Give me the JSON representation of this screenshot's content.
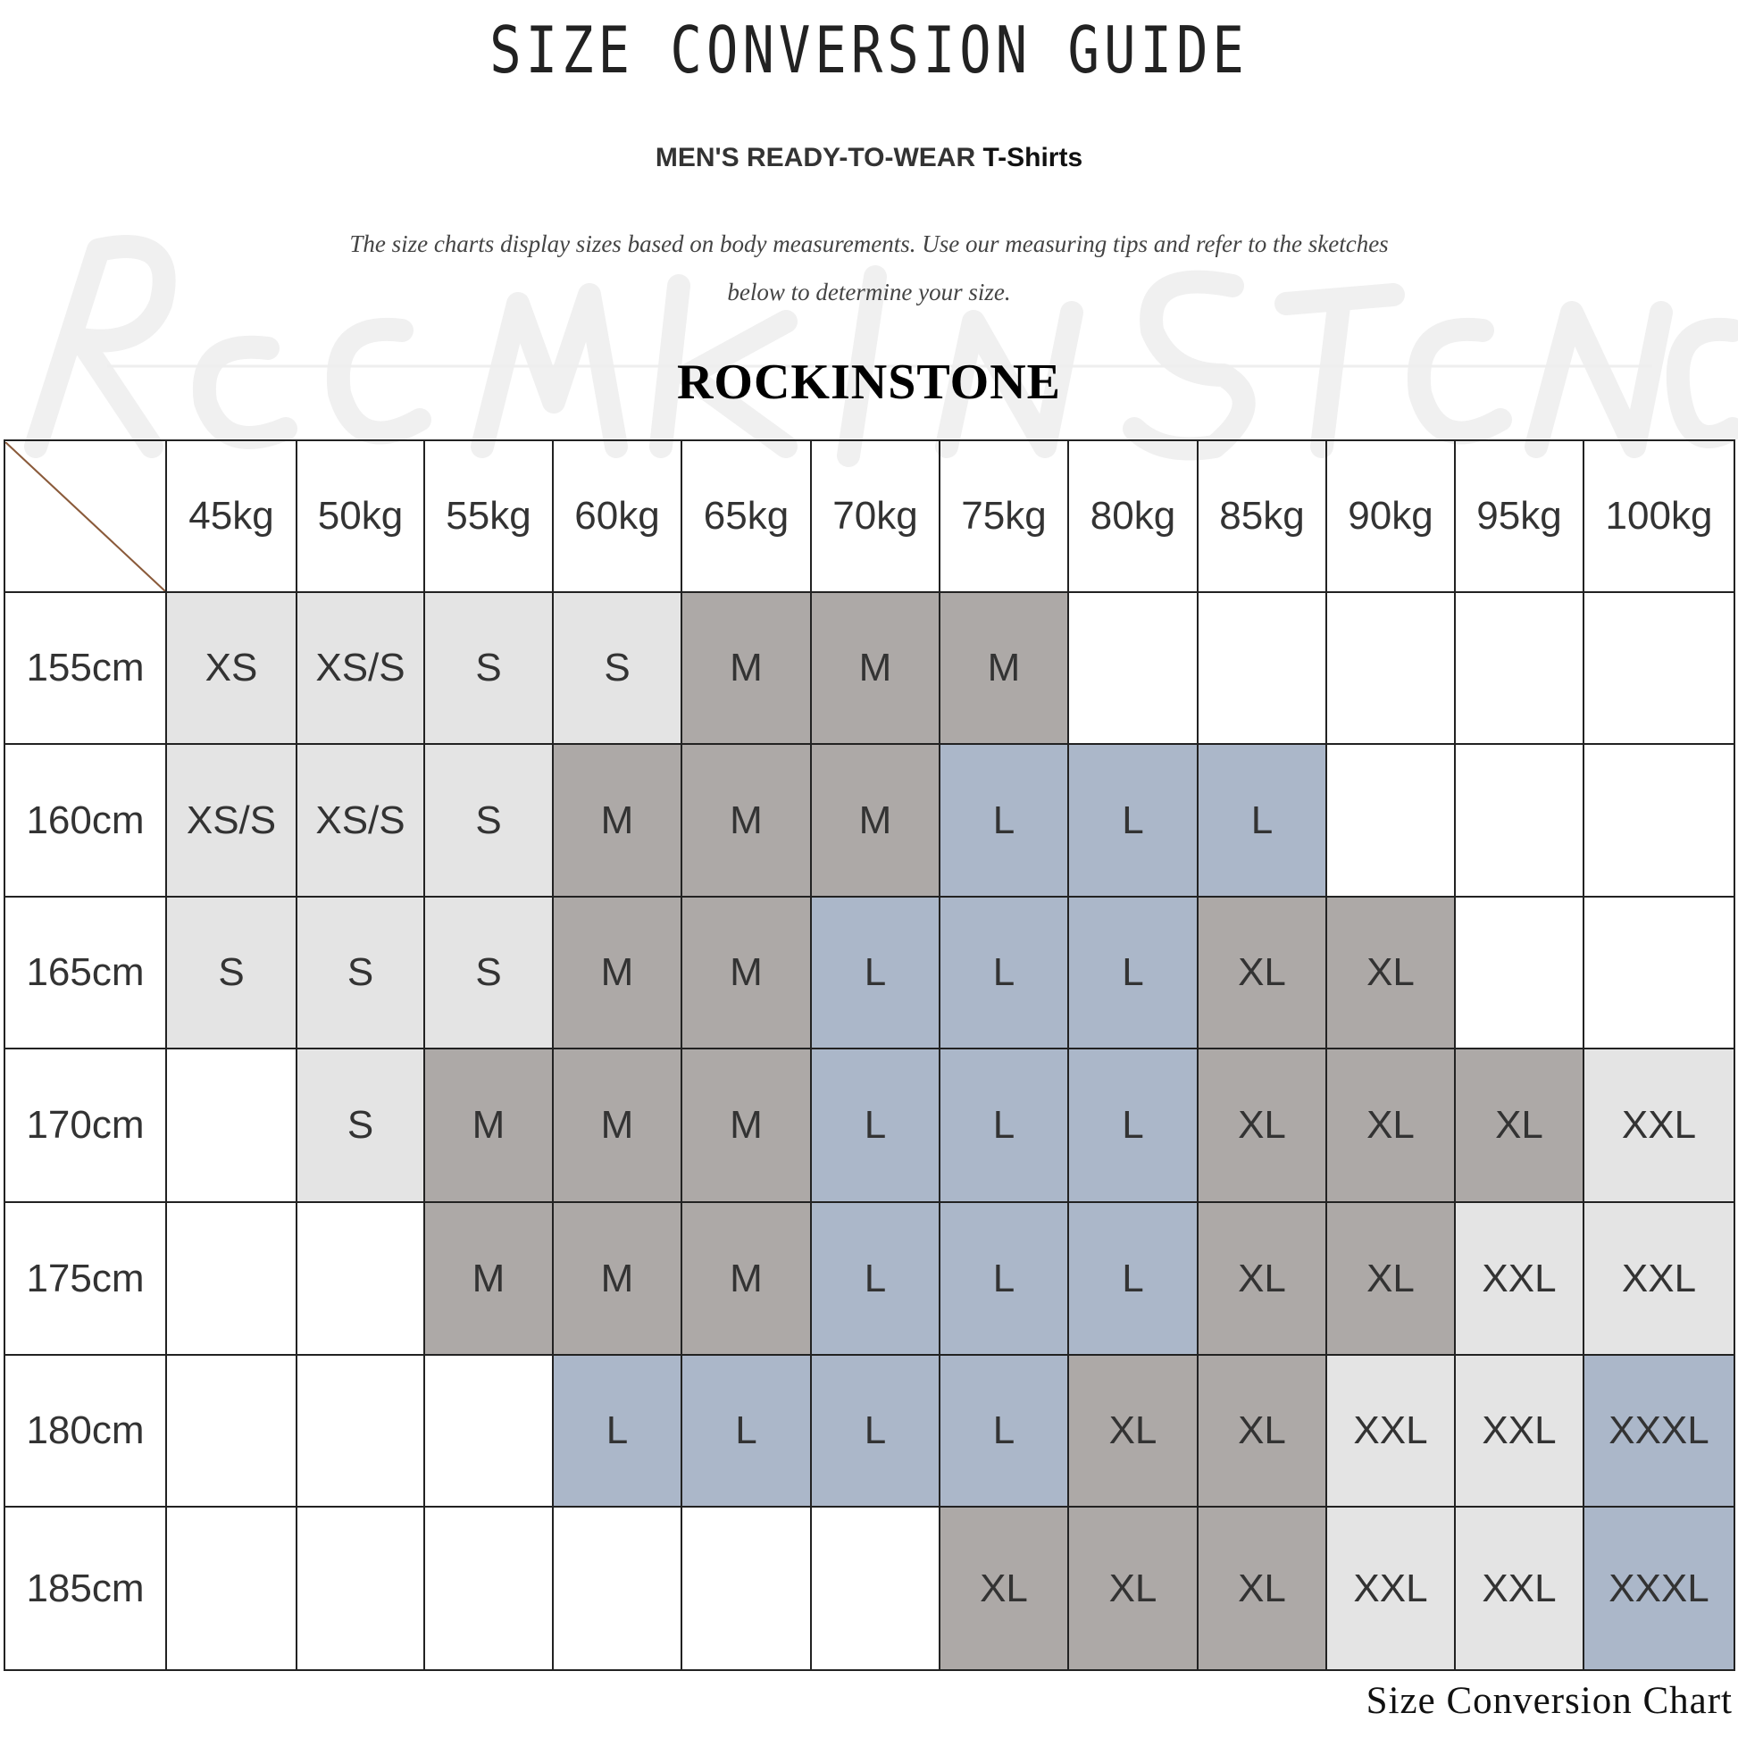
{
  "title": "SIZE CONVERSION GUIDE",
  "subtitle": {
    "main": "MEN'S READY-TO-WEAR ",
    "product": "T-Shirts"
  },
  "description": [
    "The size charts display sizes based on body measurements. Use our measuring tips and refer to the sketches",
    "below to determine your size."
  ],
  "brand": "ROCKINSTONE",
  "watermark": "Rockinstone",
  "footer": "Size Conversion Chart",
  "size_colors": {
    "XS": "#e4e4e4",
    "XS/S": "#e4e4e4",
    "S": "#e4e4e4",
    "M": "#ada9a7",
    "L": "#abb7c9",
    "XL": "#ada9a7",
    "XXL": "#e4e4e4",
    "XXXL": "#abb7c9",
    "": "#ffffff"
  },
  "table": {
    "weights": [
      "45kg",
      "50kg",
      "55kg",
      "60kg",
      "65kg",
      "70kg",
      "75kg",
      "80kg",
      "85kg",
      "90kg",
      "95kg",
      "100kg"
    ],
    "rows": [
      {
        "height": "155cm",
        "sizes": [
          "XS",
          "XS/S",
          "S",
          "S",
          "M",
          "M",
          "M",
          "",
          "",
          "",
          "",
          ""
        ]
      },
      {
        "height": "160cm",
        "sizes": [
          "XS/S",
          "XS/S",
          "S",
          "M",
          "M",
          "M",
          "L",
          "L",
          "L",
          "",
          "",
          ""
        ]
      },
      {
        "height": "165cm",
        "sizes": [
          "S",
          "S",
          "S",
          "M",
          "M",
          "L",
          "L",
          "L",
          "XL",
          "XL",
          "",
          ""
        ]
      },
      {
        "height": "170cm",
        "sizes": [
          "",
          "S",
          "M",
          "M",
          "M",
          "L",
          "L",
          "L",
          "XL",
          "XL",
          "XL",
          "XXL"
        ]
      },
      {
        "height": "175cm",
        "sizes": [
          "",
          "",
          "M",
          "M",
          "M",
          "L",
          "L",
          "L",
          "XL",
          "XL",
          "XXL",
          "XXL"
        ]
      },
      {
        "height": "180cm",
        "sizes": [
          "",
          "",
          "",
          "L",
          "L",
          "L",
          "L",
          "XL",
          "XL",
          "XXL",
          "XXL",
          "XXXL"
        ]
      },
      {
        "height": "185cm",
        "sizes": [
          "",
          "",
          "",
          "",
          "",
          "",
          "XL",
          "XL",
          "XL",
          "XXL",
          "XXL",
          "XXXL"
        ]
      }
    ]
  }
}
